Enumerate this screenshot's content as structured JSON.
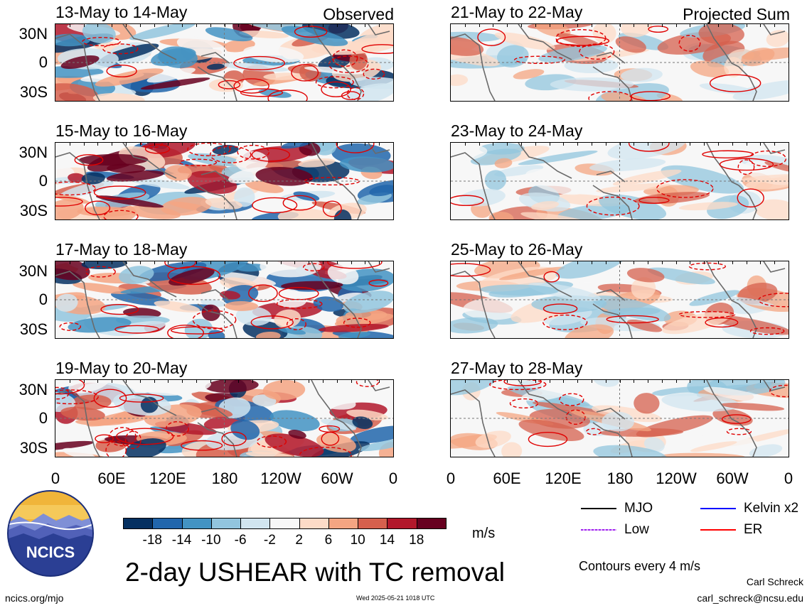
{
  "panels": [
    {
      "title": "13-May to 14-May",
      "tag": "Observed",
      "kind": "obs",
      "seed": 11
    },
    {
      "title": "15-May to 16-May",
      "tag": "",
      "kind": "obs",
      "seed": 23
    },
    {
      "title": "17-May to 18-May",
      "tag": "",
      "kind": "obs",
      "seed": 37
    },
    {
      "title": "19-May to 20-May",
      "tag": "",
      "kind": "obs",
      "seed": 41
    },
    {
      "title": "21-May to 22-May",
      "tag": "Projected Sum",
      "kind": "proj",
      "seed": 53
    },
    {
      "title": "23-May to 24-May",
      "tag": "",
      "kind": "proj",
      "seed": 61
    },
    {
      "title": "25-May to 26-May",
      "tag": "",
      "kind": "proj",
      "seed": 73
    },
    {
      "title": "27-May to 28-May",
      "tag": "",
      "kind": "proj",
      "seed": 89
    }
  ],
  "lat_labels": [
    "30N",
    "0",
    "30S"
  ],
  "lon_labels": [
    "0",
    "60E",
    "120E",
    "180",
    "120W",
    "60W",
    "0"
  ],
  "colorbar": {
    "colors": [
      "#053061",
      "#2166ac",
      "#4393c3",
      "#92c5de",
      "#d1e5f0",
      "#f7f7f7",
      "#fddbc7",
      "#f4a582",
      "#d6604d",
      "#b2182b",
      "#67001f"
    ],
    "labels": [
      "-18",
      "-14",
      "-10",
      "-6",
      "-2",
      "2",
      "6",
      "10",
      "14",
      "18"
    ],
    "units": "m/s"
  },
  "legend": {
    "items": [
      {
        "label": "MJO",
        "color": "#000000"
      },
      {
        "label": "Kelvin x2",
        "color": "#0000ff"
      },
      {
        "label": "Low",
        "color": "#a020f0"
      },
      {
        "label": "ER",
        "color": "#ff0000"
      }
    ],
    "contours_note": "Contours every 4 m/s"
  },
  "main_title": "2-day USHEAR with TC removal",
  "logo_text": "NCICS",
  "footer": {
    "site": "ncics.org/mjo",
    "timestamp": "Wed 2025-05-21 1018 UTC",
    "author": "Carl Schreck",
    "email": "carl_schreck@ncsu.edu"
  }
}
